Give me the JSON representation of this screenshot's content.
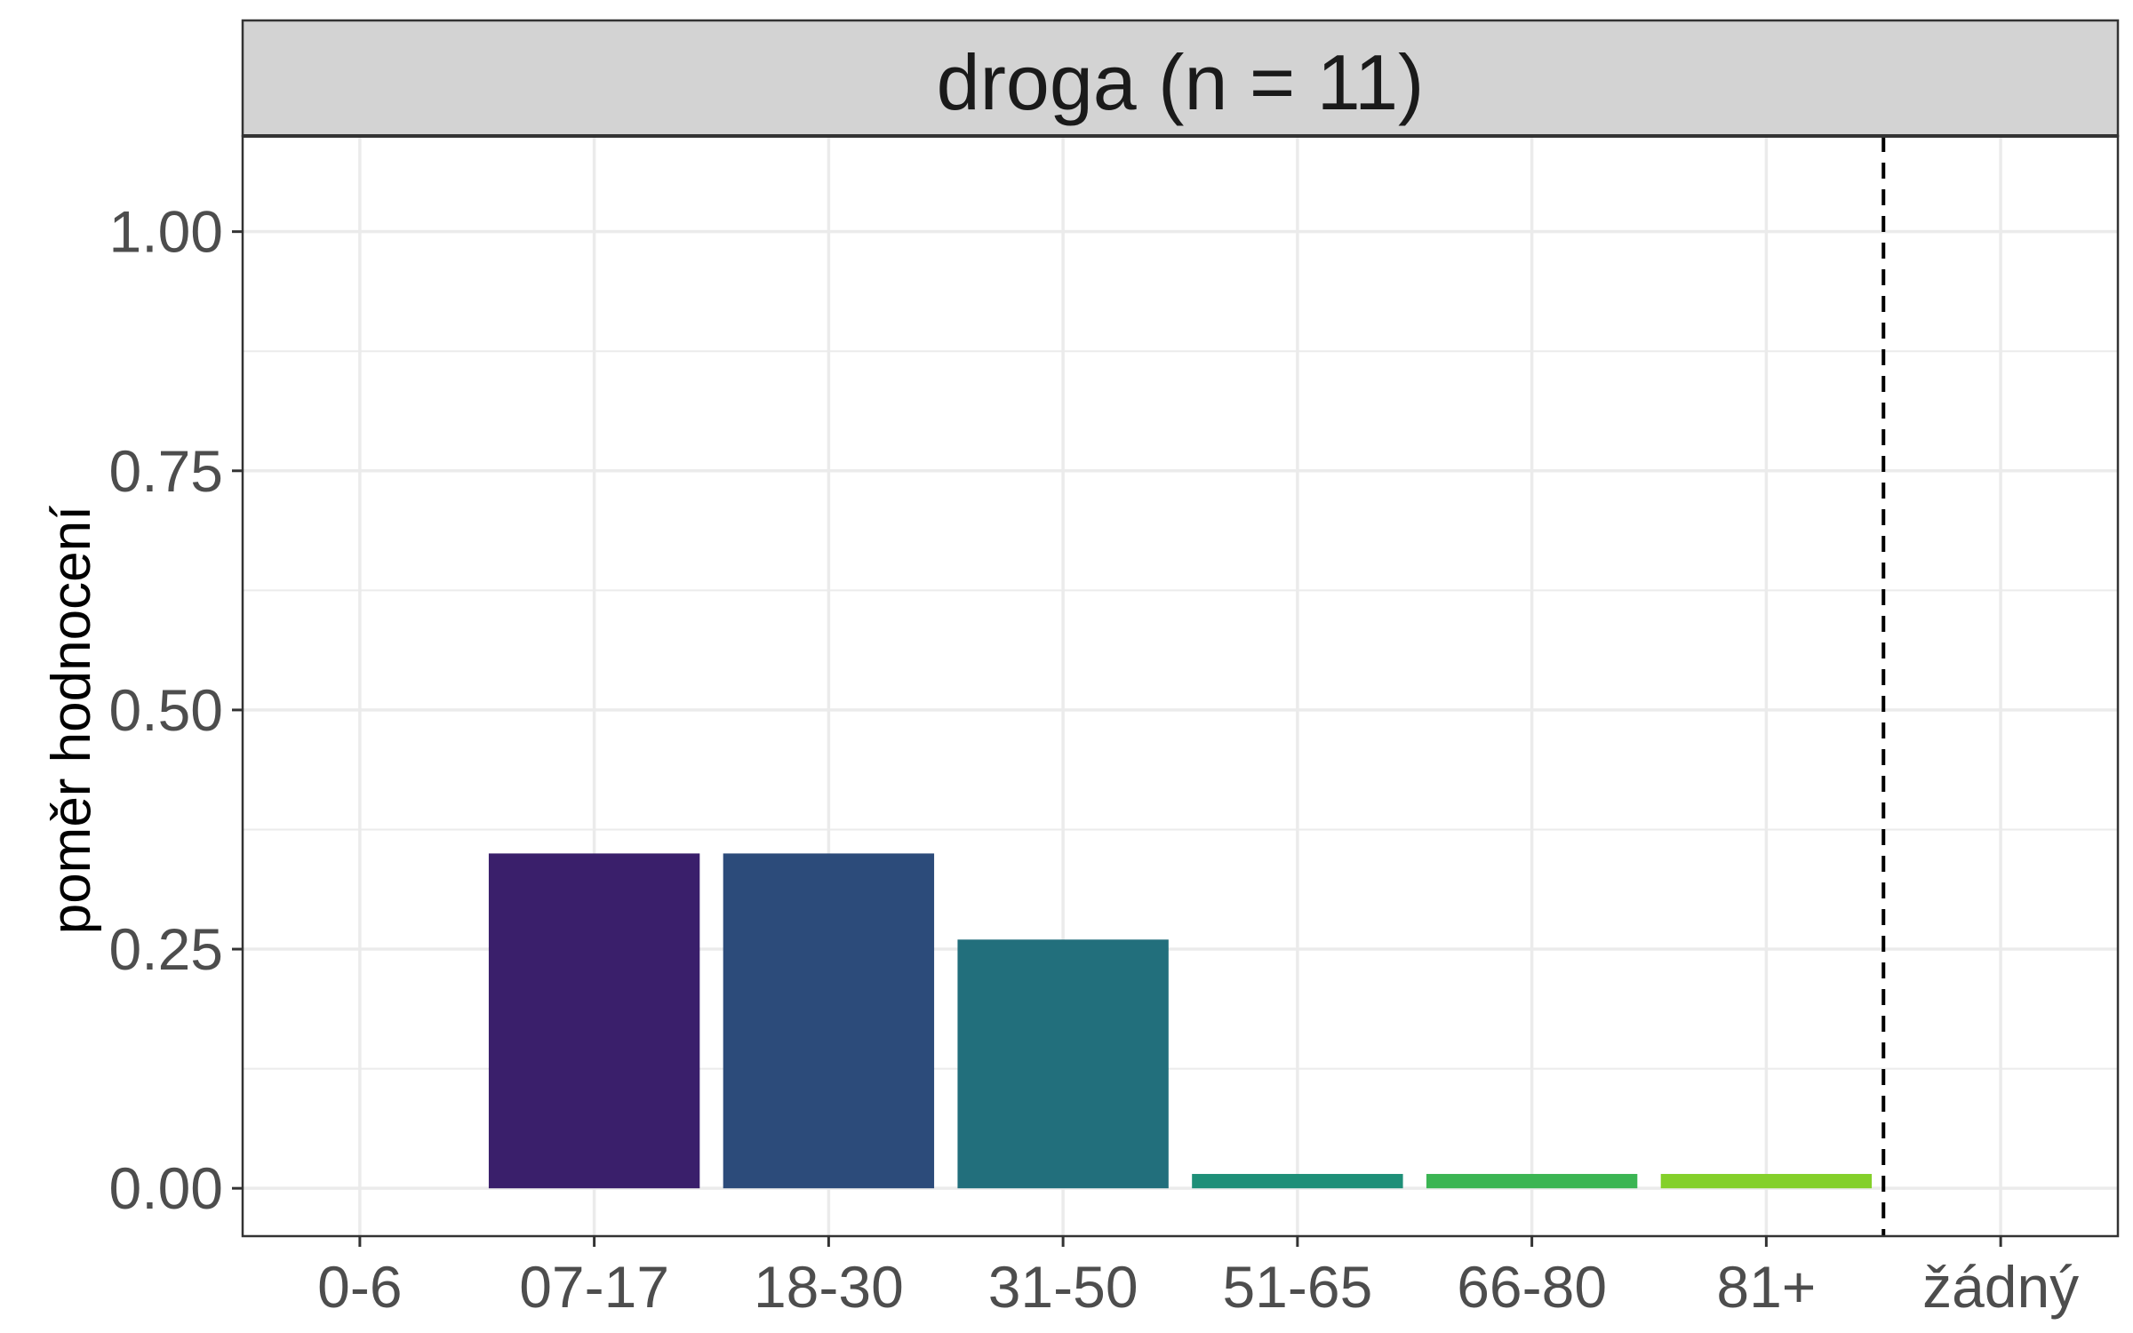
{
  "chart_data": {
    "type": "bar",
    "facet_label": "droga (n = 11)",
    "xlabel": "",
    "ylabel": "poměr hodnocení",
    "categories": [
      "0-6",
      "07-17",
      "18-30",
      "31-50",
      "51-65",
      "66-80",
      "81+",
      "žádný"
    ],
    "values": [
      0,
      0.35,
      0.35,
      0.26,
      0.015,
      0.015,
      0.015,
      0
    ],
    "colors": [
      "#440154",
      "#3a1f6b",
      "#2c4b7a",
      "#226f7c",
      "#1e8f78",
      "#3bb553",
      "#84d02a",
      "#fde725"
    ],
    "ylim": [
      -0.05,
      1.1
    ],
    "yticks": [
      0,
      0.25,
      0.5,
      0.75,
      1.0
    ],
    "ytick_labels": [
      "0.00",
      "0.25",
      "0.50",
      "0.75",
      "1.00"
    ],
    "reference_line": {
      "between": [
        "81+",
        "žádný"
      ],
      "style": "dashed",
      "color": "#000000"
    },
    "grid": true,
    "legend": "none",
    "panel_border_color": "#333333",
    "strip_fill": "#d3d3d3",
    "grid_color": "#ebebeb"
  }
}
